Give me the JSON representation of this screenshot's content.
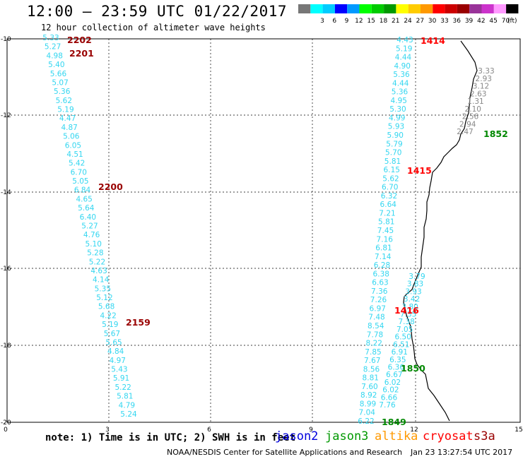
{
  "header": {
    "title": "12:00 — 23:59 UTC 01/22/2017",
    "subtitle": "12 hour collection of altimeter wave heights"
  },
  "legend": {
    "swatches": [
      {
        "color": "#777777",
        "label": ""
      },
      {
        "color": "#00ffff",
        "label": "3"
      },
      {
        "color": "#00ccff",
        "label": "6"
      },
      {
        "color": "#0000ff",
        "label": "9"
      },
      {
        "color": "#0099ff",
        "label": "12"
      },
      {
        "color": "#00ff00",
        "label": "15"
      },
      {
        "color": "#00cc00",
        "label": "18"
      },
      {
        "color": "#009900",
        "label": "21"
      },
      {
        "color": "#ffff00",
        "label": "24"
      },
      {
        "color": "#ffcc00",
        "label": "27"
      },
      {
        "color": "#ff9900",
        "label": "30"
      },
      {
        "color": "#ff0000",
        "label": "33"
      },
      {
        "color": "#cc0000",
        "label": "36"
      },
      {
        "color": "#990000",
        "label": "39"
      },
      {
        "color": "#993399",
        "label": "42"
      },
      {
        "color": "#cc33cc",
        "label": "45"
      },
      {
        "color": "#ff99ff",
        "label": "70"
      },
      {
        "color": "#000000",
        "label": "(ft)"
      }
    ]
  },
  "axes": {
    "x_ticks": [
      "0",
      "3",
      "6",
      "9",
      "12",
      "15"
    ],
    "y_ticks": [
      "-10",
      "-12",
      "-14",
      "-16",
      "-18",
      "-20"
    ]
  },
  "tracks": [
    {
      "color": "#33d6f0",
      "values": [
        "5.33",
        "5.27",
        "4.98",
        "5.40",
        "5.66",
        "5.07",
        "5.36",
        "5.62",
        "5.19",
        "4.47",
        "4.87",
        "5.06",
        "6.05",
        "4.51",
        "5.42",
        "6.70",
        "5.05",
        "6.84",
        "4.65",
        "5.64",
        "6.40",
        "5.27",
        "4.76",
        "5.10",
        "5.28",
        "5.22",
        "4.63",
        "4.14",
        "5.35",
        "5.12",
        "5.68",
        "4.22",
        "5.19",
        "5.67",
        "5.65",
        "4.84",
        "4.97",
        "5.43",
        "5.91",
        "5.22",
        "5.81",
        "4.79",
        "5.24"
      ]
    },
    {
      "color": "#33d6f0",
      "values": [
        "4.43",
        "5.19",
        "4.44",
        "4.90",
        "5.36",
        "4.44",
        "5.36",
        "4.95",
        "5.30",
        "4.99",
        "5.93",
        "5.90",
        "5.79",
        "5.70",
        "5.81",
        "6.15",
        "5.62",
        "6.70",
        "6.32",
        "6.64",
        "7.21",
        "5.81",
        "7.45",
        "7.16",
        "6.81",
        "7.14",
        "6.28",
        "6.38",
        "6.63",
        "7.36",
        "7.26",
        "6.97",
        "7.48",
        "8.54",
        "7.78",
        "8.22",
        "7.85",
        "7.67",
        "8.56",
        "8.81",
        "7.60",
        "8.92",
        "8.99",
        "7.04",
        "6.22"
      ]
    },
    {
      "color": "#33d6f0",
      "values": [
        "3.79",
        "3.83",
        "3.93",
        "3.42",
        "3.80",
        "7.35",
        "7.38",
        "7.05",
        "6.50",
        "6.51",
        "6.91",
        "6.35",
        "6.36",
        "6.67",
        "6.02",
        "6.02",
        "6.66",
        "7.76"
      ]
    },
    {
      "color": "#888888",
      "values": [
        "3.33",
        "2.93",
        "3.12",
        "2.63",
        "1.31",
        "2.10",
        "2.56",
        "2.94",
        "2.47"
      ]
    }
  ],
  "time_labels": [
    {
      "text": "2202",
      "color": "#990000"
    },
    {
      "text": "2201",
      "color": "#990000"
    },
    {
      "text": "2200",
      "color": "#990000"
    },
    {
      "text": "2159",
      "color": "#990000"
    },
    {
      "text": "1414",
      "color": "#ff0000"
    },
    {
      "text": "1415",
      "color": "#ff0000"
    },
    {
      "text": "1416",
      "color": "#ff0000"
    },
    {
      "text": "1852",
      "color": "#008800"
    },
    {
      "text": "1850",
      "color": "#008800"
    },
    {
      "text": "1849",
      "color": "#008800"
    }
  ],
  "footer": {
    "note": "note:  1) Time is in UTC;  2) SWH is in feet",
    "satellites": [
      {
        "name": "jason2",
        "color": "#0000dd"
      },
      {
        "name": "jason3",
        "color": "#009900"
      },
      {
        "name": "altika",
        "color": "#ff9900"
      },
      {
        "name": "cryosat",
        "color": "#ff0000"
      },
      {
        "name": "s3a",
        "color": "#990000"
      }
    ],
    "credit": "NOAA/NESDIS Center for Satellite Applications and Research",
    "timestamp": "Jan 23 13:27:54 UTC 2017"
  }
}
